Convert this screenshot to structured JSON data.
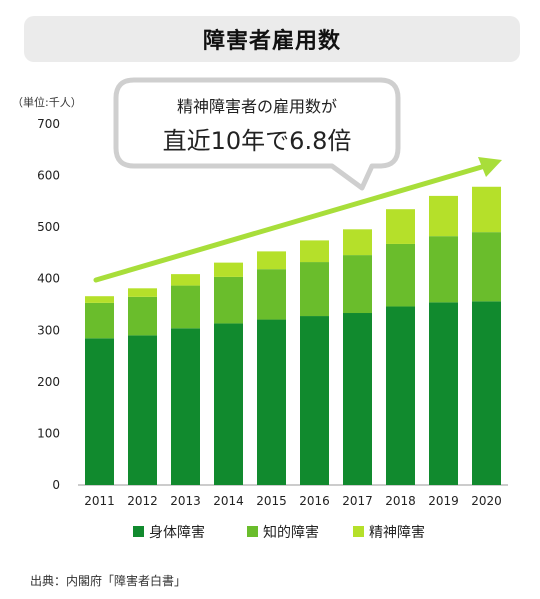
{
  "title": "障害者雇用数",
  "unit_label": "（単位:千人）",
  "callout": {
    "line1": "精神障害者の雇用数が",
    "line2": "直近10年で6.8倍"
  },
  "source": "出典：内閣府「障害者白書」",
  "colors": {
    "physical": "#118a2e",
    "intellectual": "#6abd2c",
    "mental": "#b5e02a",
    "arrow": "#a8de3a"
  },
  "chart_data": {
    "type": "bar",
    "stacked": true,
    "categories": [
      "2011",
      "2012",
      "2013",
      "2014",
      "2015",
      "2016",
      "2017",
      "2018",
      "2019",
      "2020"
    ],
    "series": [
      {
        "name": "身体障害",
        "values": [
          284.4,
          290.1,
          303.8,
          313.3,
          320.8,
          327.6,
          333.5,
          346.2,
          354.1,
          356.1
        ]
      },
      {
        "name": "知的障害",
        "values": [
          68.7,
          74.7,
          82.9,
          90.2,
          97.7,
          104.7,
          112.3,
          121.2,
          128.4,
          134.2
        ]
      },
      {
        "name": "精神障害",
        "values": [
          13.0,
          16.6,
          22.2,
          27.7,
          34.5,
          42.0,
          50.0,
          67.4,
          78.1,
          88.0
        ]
      }
    ],
    "yticks": [
      0,
      100,
      200,
      300,
      400,
      500,
      600,
      700
    ],
    "ylim": [
      0,
      700
    ],
    "legend_position": "bottom"
  }
}
